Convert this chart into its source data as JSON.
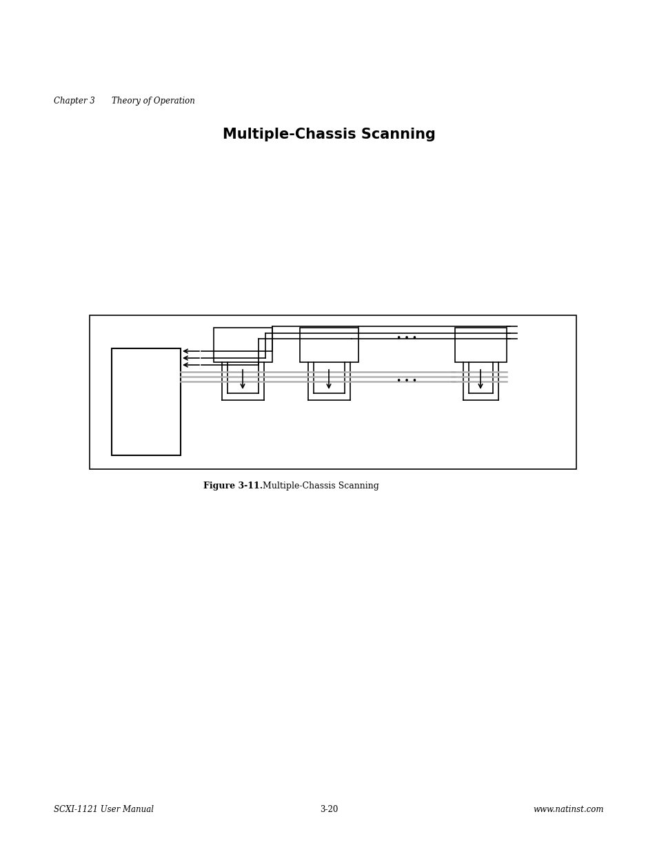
{
  "title": "Multiple-Chassis Scanning",
  "chapter_text": "Chapter 3",
  "chapter_subtext": "Theory of Operation",
  "figure_label": "Figure 3-11.",
  "figure_caption": "  Multiple-Chassis Scanning",
  "footer_left": "SCXI-1121 User Manual",
  "footer_center": "3-20",
  "footer_right": "www.natinst.com",
  "bg_color": "#ffffff",
  "line_color": "#000000",
  "gray_line_color": "#b0b0b0"
}
